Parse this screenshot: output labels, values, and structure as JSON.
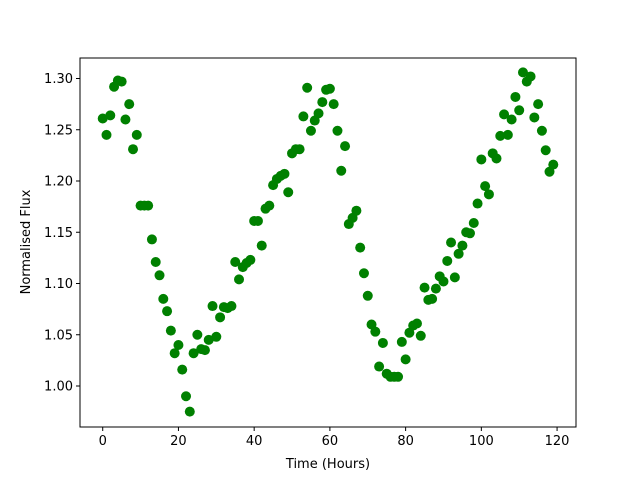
{
  "chart_data": {
    "type": "scatter",
    "title": "",
    "xlabel": "Time (Hours)",
    "ylabel": "Normalised Flux",
    "xlim": [
      -6,
      125
    ],
    "ylim": [
      0.96,
      1.32
    ],
    "x_ticks": [
      0,
      20,
      40,
      60,
      80,
      100,
      120
    ],
    "y_ticks": [
      1.0,
      1.05,
      1.1,
      1.15,
      1.2,
      1.25,
      1.3
    ],
    "x_tick_labels": [
      "0",
      "20",
      "40",
      "60",
      "80",
      "100",
      "120"
    ],
    "y_tick_labels": [
      "1.00",
      "1.05",
      "1.10",
      "1.15",
      "1.20",
      "1.25",
      "1.30"
    ],
    "grid": false,
    "marker_color": "#008000",
    "series": [
      {
        "x": [
          0,
          1,
          2,
          3,
          4,
          5,
          6,
          7,
          8,
          9,
          10,
          11,
          12,
          13,
          14,
          15,
          16,
          17,
          18,
          19,
          20,
          21,
          22,
          23,
          24,
          25,
          26,
          27,
          28,
          29,
          30,
          31,
          32,
          33,
          34,
          35,
          36,
          37,
          38,
          39,
          40,
          41,
          42,
          43,
          44,
          45,
          46,
          47,
          48,
          49,
          50,
          51,
          52,
          53,
          54,
          55,
          56,
          57,
          58,
          59,
          60,
          61,
          62,
          63,
          64,
          65,
          66,
          67,
          68,
          69,
          70,
          71,
          72,
          73,
          74,
          75,
          76,
          77,
          78,
          79,
          80,
          81,
          82,
          83,
          84,
          85,
          86,
          87,
          88,
          89,
          90,
          91,
          92,
          93,
          94,
          95,
          96,
          97,
          98,
          99,
          100,
          101,
          102,
          103,
          104,
          105,
          106,
          107,
          108,
          109,
          110,
          111,
          112,
          113,
          114,
          115,
          116,
          117,
          118,
          119
        ],
        "y": [
          1.261,
          1.245,
          1.264,
          1.292,
          1.298,
          1.297,
          1.26,
          1.275,
          1.231,
          1.245,
          1.176,
          1.176,
          1.176,
          1.143,
          1.121,
          1.108,
          1.085,
          1.073,
          1.054,
          1.032,
          1.04,
          1.016,
          0.99,
          0.975,
          1.032,
          1.05,
          1.036,
          1.035,
          1.045,
          1.078,
          1.048,
          1.067,
          1.077,
          1.076,
          1.078,
          1.121,
          1.104,
          1.116,
          1.12,
          1.123,
          1.161,
          1.161,
          1.137,
          1.173,
          1.176,
          1.196,
          1.202,
          1.205,
          1.207,
          1.189,
          1.227,
          1.231,
          1.231,
          1.263,
          1.291,
          1.249,
          1.259,
          1.266,
          1.277,
          1.289,
          1.29,
          1.275,
          1.249,
          1.21,
          1.234,
          1.158,
          1.164,
          1.171,
          1.135,
          1.11,
          1.088,
          1.06,
          1.053,
          1.019,
          1.042,
          1.012,
          1.009,
          1.009,
          1.009,
          1.043,
          1.026,
          1.052,
          1.059,
          1.061,
          1.049,
          1.096,
          1.084,
          1.085,
          1.095,
          1.107,
          1.102,
          1.122,
          1.14,
          1.106,
          1.129,
          1.137,
          1.15,
          1.149,
          1.159,
          1.178,
          1.221,
          1.195,
          1.187,
          1.227,
          1.222,
          1.244,
          1.265,
          1.245,
          1.26,
          1.282,
          1.269,
          1.306,
          1.297,
          1.302,
          1.262,
          1.275,
          1.249,
          1.23,
          1.209,
          1.216
        ]
      }
    ]
  }
}
